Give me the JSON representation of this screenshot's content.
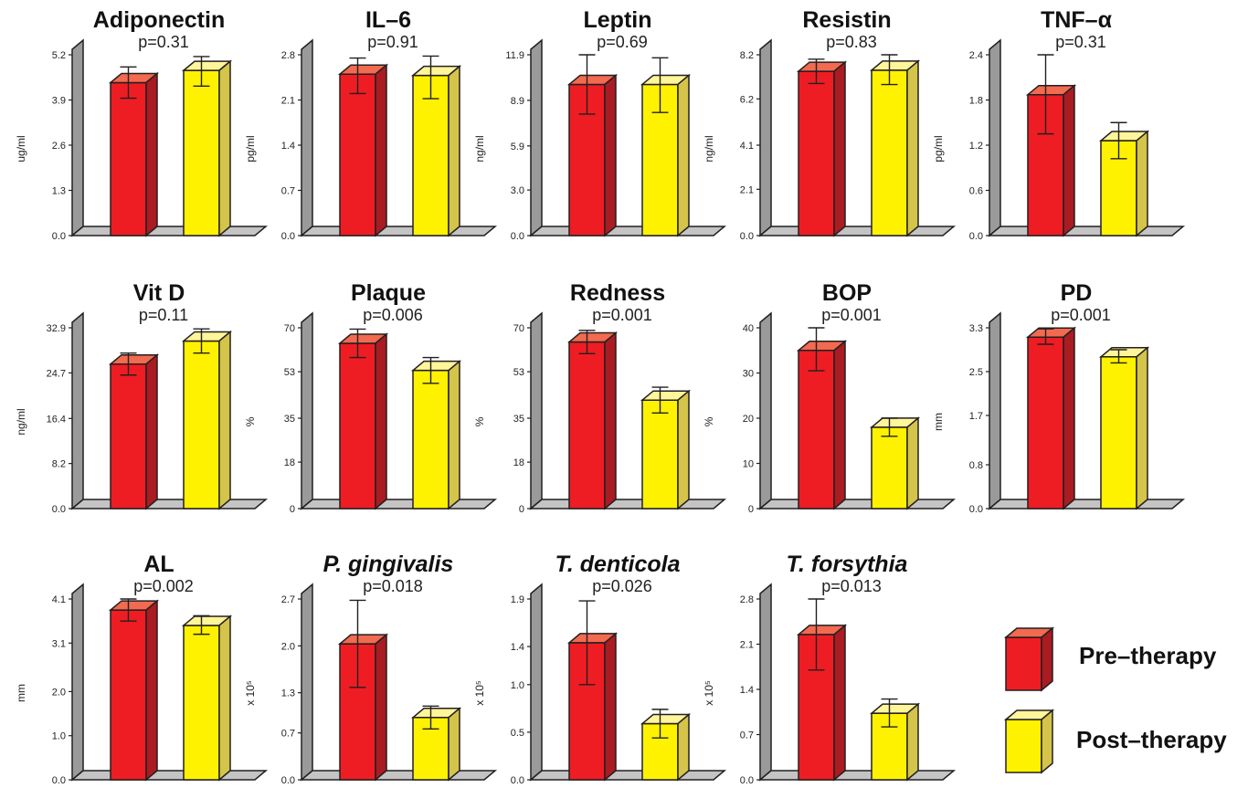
{
  "colors": {
    "pre_front": "#ee1d23",
    "pre_top": "#f26a4f",
    "pre_side": "#a81c22",
    "post_front": "#fff200",
    "post_top": "#fff69a",
    "post_side": "#d4c44a",
    "wall": "#9a9a9a",
    "floor": "#c4c4c4",
    "outline": "#231f20"
  },
  "legend": {
    "pre_label": "Pre–therapy",
    "post_label": "Post–therapy"
  },
  "chart_data": [
    {
      "type": "bar",
      "title": "Adiponectin",
      "title_italic": false,
      "pvalue": "p=0.31",
      "ylabel": "ug/ml",
      "yticks": [
        "0.0",
        "1.3",
        "2.6",
        "3.9",
        "5.2"
      ],
      "ylim": [
        0,
        5.2
      ],
      "categories": [
        "Pre–therapy",
        "Post–therapy"
      ],
      "values": [
        4.4,
        4.75
      ],
      "err_upper": [
        4.85,
        5.15
      ],
      "err_lower": [
        3.95,
        4.3
      ]
    },
    {
      "type": "bar",
      "title": "IL–6",
      "title_italic": false,
      "pvalue": "p=0.91",
      "ylabel": "pg/ml",
      "yticks": [
        "0.0",
        "0.7",
        "1.4",
        "2.1",
        "2.8"
      ],
      "ylim": [
        0,
        2.8
      ],
      "categories": [
        "Pre–therapy",
        "Post–therapy"
      ],
      "values": [
        2.5,
        2.48
      ],
      "err_upper": [
        2.75,
        2.78
      ],
      "err_lower": [
        2.2,
        2.12
      ]
    },
    {
      "type": "bar",
      "title": "Leptin",
      "title_italic": false,
      "pvalue": "p=0.69",
      "ylabel": "ng/ml",
      "yticks": [
        "0.0",
        "3.0",
        "5.9",
        "8.9",
        "11.9"
      ],
      "ylim": [
        0,
        11.9
      ],
      "categories": [
        "Pre–therapy",
        "Post–therapy"
      ],
      "values": [
        9.95,
        9.95
      ],
      "err_upper": [
        11.9,
        11.7
      ],
      "err_lower": [
        8.0,
        8.1
      ]
    },
    {
      "type": "bar",
      "title": "Resistin",
      "title_italic": false,
      "pvalue": "p=0.83",
      "ylabel": "ng/ml",
      "yticks": [
        "0.0",
        "2.1",
        "4.1",
        "6.2",
        "8.2"
      ],
      "ylim": [
        0,
        8.2
      ],
      "categories": [
        "Pre–therapy",
        "Post–therapy"
      ],
      "values": [
        7.45,
        7.5
      ],
      "err_upper": [
        8.0,
        8.2
      ],
      "err_lower": [
        6.9,
        6.85
      ]
    },
    {
      "type": "bar",
      "title": "TNF–α",
      "title_italic": false,
      "pvalue": "p=0.31",
      "ylabel": "pg/ml",
      "yticks": [
        "0.0",
        "0.6",
        "1.2",
        "1.8",
        "2.4"
      ],
      "ylim": [
        0,
        2.4
      ],
      "categories": [
        "Pre–therapy",
        "Post–therapy"
      ],
      "values": [
        1.87,
        1.26
      ],
      "err_upper": [
        2.4,
        1.5
      ],
      "err_lower": [
        1.35,
        1.02
      ]
    },
    {
      "type": "bar",
      "title": "Vit D",
      "title_italic": false,
      "pvalue": "p=0.11",
      "ylabel": "ng/ml",
      "yticks": [
        "0.0",
        "8.2",
        "16.4",
        "24.7",
        "32.9"
      ],
      "ylim": [
        0,
        32.9
      ],
      "categories": [
        "Pre–therapy",
        "Post–therapy"
      ],
      "values": [
        26.3,
        30.5
      ],
      "err_upper": [
        28.3,
        32.7
      ],
      "err_lower": [
        24.3,
        28.3
      ]
    },
    {
      "type": "bar",
      "title": "Plaque",
      "title_italic": false,
      "pvalue": "p=0.006",
      "ylabel": "%",
      "yticks": [
        "0",
        "18",
        "35",
        "53",
        "70"
      ],
      "ylim": [
        0,
        70
      ],
      "categories": [
        "Pre–therapy",
        "Post–therapy"
      ],
      "values": [
        64,
        53.5
      ],
      "err_upper": [
        69.5,
        58.5
      ],
      "err_lower": [
        58.5,
        48.5
      ]
    },
    {
      "type": "bar",
      "title": "Redness",
      "title_italic": false,
      "pvalue": "p=0.001",
      "ylabel": "%",
      "yticks": [
        "0",
        "18",
        "35",
        "53",
        "70"
      ],
      "ylim": [
        0,
        70
      ],
      "categories": [
        "Pre–therapy",
        "Post–therapy"
      ],
      "values": [
        64.5,
        42
      ],
      "err_upper": [
        69,
        47
      ],
      "err_lower": [
        60,
        37
      ]
    },
    {
      "type": "bar",
      "title": "BOP",
      "title_italic": false,
      "pvalue": "p=0.001",
      "ylabel": "%",
      "yticks": [
        "0",
        "10",
        "20",
        "30",
        "40"
      ],
      "ylim": [
        0,
        40
      ],
      "categories": [
        "Pre–therapy",
        "Post–therapy"
      ],
      "values": [
        35,
        18
      ],
      "err_upper": [
        40,
        20
      ],
      "err_lower": [
        30.5,
        16
      ]
    },
    {
      "type": "bar",
      "title": "PD",
      "title_italic": false,
      "pvalue": "p=0.001",
      "ylabel": "mm",
      "yticks": [
        "0.0",
        "0.8",
        "1.7",
        "2.5",
        "3.3"
      ],
      "ylim": [
        0,
        3.3
      ],
      "categories": [
        "Pre–therapy",
        "Post–therapy"
      ],
      "values": [
        3.13,
        2.77
      ],
      "err_upper": [
        3.28,
        2.9
      ],
      "err_lower": [
        3.0,
        2.66
      ]
    },
    {
      "type": "bar",
      "title": "AL",
      "title_italic": false,
      "pvalue": "p=0.002",
      "ylabel": "mm",
      "yticks": [
        "0.0",
        "1.0",
        "2.0",
        "3.1",
        "4.1"
      ],
      "ylim": [
        0,
        4.1
      ],
      "categories": [
        "Pre–therapy",
        "Post–therapy"
      ],
      "values": [
        3.85,
        3.5
      ],
      "err_upper": [
        4.1,
        3.72
      ],
      "err_lower": [
        3.6,
        3.3
      ]
    },
    {
      "type": "bar",
      "title": "P. gingivalis",
      "title_italic": true,
      "pvalue": "p=0.018",
      "ylabel": "x 10⁵",
      "yticks": [
        "0.0",
        "0.7",
        "1.3",
        "2.0",
        "2.7"
      ],
      "ylim": [
        0,
        2.7
      ],
      "categories": [
        "Pre–therapy",
        "Post–therapy"
      ],
      "values": [
        2.03,
        0.93
      ],
      "err_upper": [
        2.68,
        1.1
      ],
      "err_lower": [
        1.38,
        0.76
      ]
    },
    {
      "type": "bar",
      "title": "T. denticola",
      "title_italic": true,
      "pvalue": "p=0.026",
      "ylabel": "x 10⁵",
      "yticks": [
        "0.0",
        "0.5",
        "1.0",
        "1.4",
        "1.9"
      ],
      "ylim": [
        0,
        1.9
      ],
      "categories": [
        "Pre–therapy",
        "Post–therapy"
      ],
      "values": [
        1.44,
        0.59
      ],
      "err_upper": [
        1.88,
        0.74
      ],
      "err_lower": [
        1.0,
        0.44
      ]
    },
    {
      "type": "bar",
      "title": "T. forsythia",
      "title_italic": true,
      "pvalue": "p=0.013",
      "ylabel": "x 10⁵",
      "yticks": [
        "0.0",
        "0.7",
        "1.4",
        "2.1",
        "2.8"
      ],
      "ylim": [
        0,
        2.8
      ],
      "categories": [
        "Pre–therapy",
        "Post–therapy"
      ],
      "values": [
        2.25,
        1.03
      ],
      "err_upper": [
        2.8,
        1.25
      ],
      "err_lower": [
        1.7,
        0.82
      ]
    }
  ]
}
